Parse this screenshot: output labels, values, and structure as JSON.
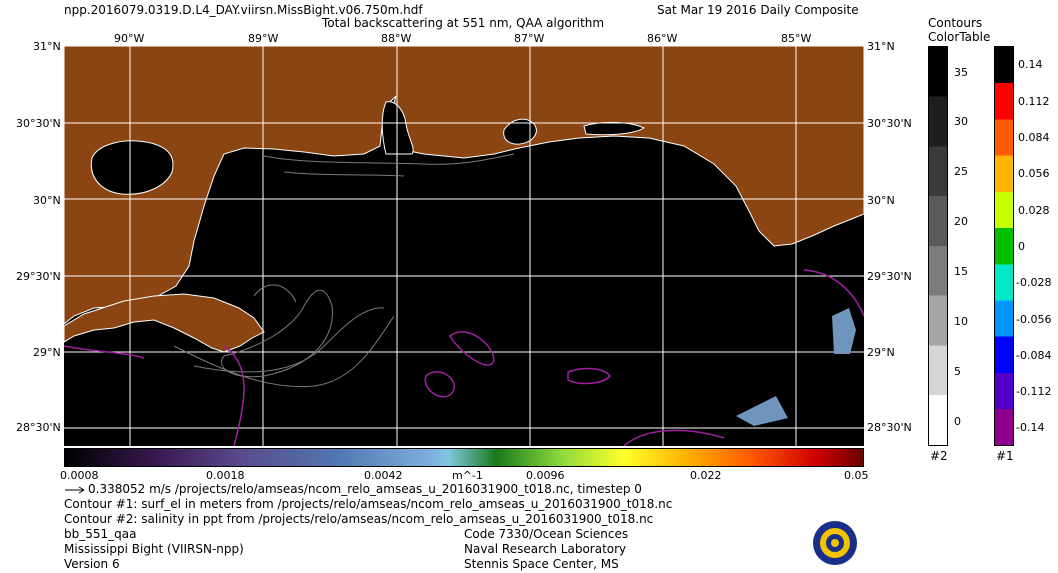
{
  "header": {
    "filename": "npp.2016079.0319.D.L4_DAY.viirsn.MissBight.v06.750m.hdf",
    "product": "Total backscattering at 551 nm, QAA algorithm",
    "date": "Sat Mar 19 2016 Daily Composite"
  },
  "map": {
    "lon_labels": [
      "90°W",
      "89°W",
      "88°W",
      "87°W",
      "86°W",
      "85°W"
    ],
    "lat_labels": [
      "31°N",
      "30°30'N",
      "30°N",
      "29°30'N",
      "29°N",
      "28°30'N"
    ],
    "colors": {
      "land": "#8B4513",
      "water": "#000000",
      "coast": "#ffffff",
      "contour2": "#6a6a6a",
      "contour1": "#a020a0"
    }
  },
  "colorbar": {
    "tick_labels": [
      "0.0008",
      "0.0018",
      "0.0042",
      "m^-1",
      "0.0096",
      "0.022",
      "0.05"
    ]
  },
  "contours_table": {
    "title_line1": "Contours",
    "title_line2": "ColorTable",
    "table2_labels": [
      "35",
      "30",
      "25",
      "20",
      "15",
      "10",
      "5",
      "0"
    ],
    "table1_labels": [
      "0.14",
      "0.112",
      "0.084",
      "0.056",
      "0.028",
      "0",
      "-0.028",
      "-0.056",
      "-0.084",
      "-0.112",
      "-0.14"
    ],
    "table2_id": "#2",
    "table1_id": "#1"
  },
  "footer": {
    "vector_line": "0.338052 m/s /projects/relo/amseas/ncom_relo_amseas_u_2016031900_t018.nc, timestep 0",
    "contour1_line": "Contour #1: surf_el in meters from /projects/relo/amseas/ncom_relo_amseas_u_2016031900_t018.nc",
    "contour2_line": "Contour #2: salinity in ppt from /projects/relo/amseas/ncom_relo_amseas_u_2016031900_t018.nc",
    "left_lines": [
      "bb_551_qaa",
      "Mississippi Bight (VIIRSN-npp)",
      "Version 6"
    ],
    "right_lines": [
      "Code 7330/Ocean Sciences",
      "Naval Research Laboratory",
      "Stennis Space Center, MS"
    ]
  }
}
